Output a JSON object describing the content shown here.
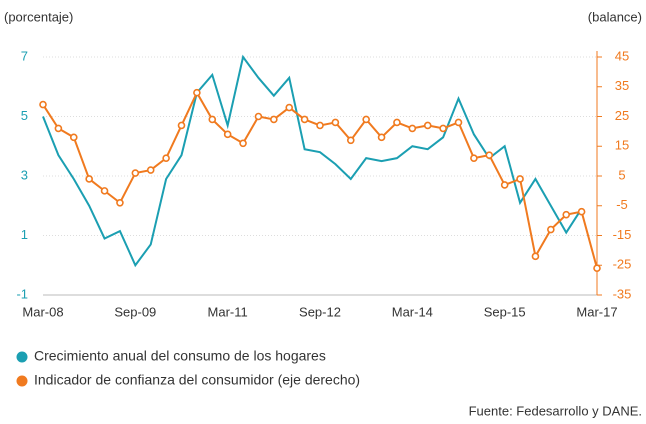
{
  "chart_data": {
    "type": "line",
    "y_label": "(porcentaje)",
    "y2_label": "(balance)",
    "categories": [
      "Mar-08",
      null,
      null,
      null,
      null,
      null,
      "Sep-09",
      null,
      null,
      null,
      null,
      null,
      "Mar-11",
      null,
      null,
      null,
      null,
      null,
      "Sep-12",
      null,
      null,
      null,
      null,
      null,
      "Mar-14",
      null,
      null,
      null,
      null,
      null,
      "Sep-15",
      null,
      null,
      null,
      null,
      null,
      "Mar-17"
    ],
    "series": [
      {
        "name": "Crecimiento anual del consumo de los hogares",
        "color": "#1b9fb2",
        "axis": "y",
        "values": [
          5.0,
          3.7,
          2.9,
          2.0,
          0.9,
          1.15,
          0.0,
          0.7,
          2.9,
          3.7,
          5.8,
          6.4,
          4.7,
          7.0,
          6.3,
          5.7,
          6.3,
          3.9,
          3.8,
          3.4,
          2.9,
          3.6,
          3.5,
          3.6,
          4.0,
          3.9,
          4.3,
          5.6,
          4.4,
          3.6,
          4.0,
          2.1,
          2.9,
          2.0,
          1.1,
          1.9,
          null
        ]
      },
      {
        "name": "Indicador de confianza del consumidor (eje derecho)",
        "color": "#f07a1f",
        "axis": "y2",
        "values": [
          29,
          21,
          18,
          4,
          0,
          -4,
          6,
          7,
          11,
          22,
          33,
          24,
          19,
          16,
          25,
          24,
          28,
          24,
          22,
          23,
          17,
          24,
          18,
          23,
          21,
          22,
          21,
          23,
          11,
          12,
          2,
          4,
          -22,
          -13,
          -8,
          -7,
          -26
        ]
      }
    ],
    "ylim": [
      -1,
      7
    ],
    "yticks": [
      -1,
      1,
      3,
      5,
      7
    ],
    "y2lim": [
      -35,
      45
    ],
    "y2ticks": [
      -35,
      -25,
      -15,
      -5,
      5,
      15,
      25,
      35,
      45
    ],
    "grid": true,
    "source": "Fuente: Fedesarrollo y DANE."
  }
}
